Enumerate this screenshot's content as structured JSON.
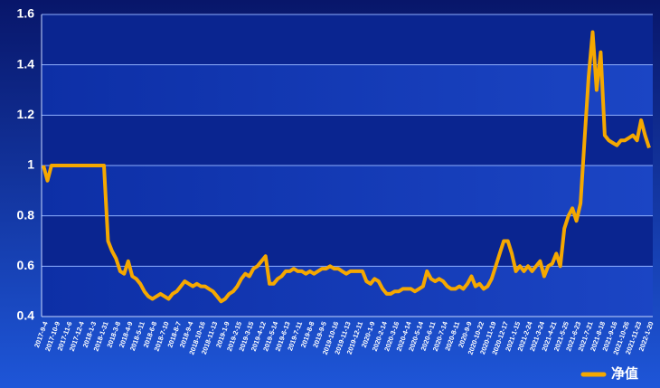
{
  "chart_data": {
    "type": "line",
    "categories": [
      "2017-9-4",
      null,
      null,
      "2017-10-9",
      null,
      null,
      "2017-11-6",
      null,
      null,
      "2017-12-4",
      null,
      null,
      "2018-1-3",
      null,
      null,
      "2018-1-31",
      null,
      null,
      "2018-3-8",
      null,
      null,
      "2018-4-9",
      null,
      null,
      "2018-5-11",
      null,
      null,
      "2018-6-8",
      null,
      null,
      "2018-7-10",
      null,
      null,
      "2018-8-7",
      null,
      null,
      "2018-9-4",
      null,
      null,
      "2018-10-16",
      null,
      null,
      "2018-11-13",
      null,
      null,
      "2019-1-9",
      null,
      null,
      "2019-2-15",
      null,
      null,
      "2019-3-15",
      null,
      null,
      "2019-4-12",
      null,
      null,
      "2019-5-14",
      null,
      null,
      "2019-6-13",
      null,
      null,
      "2019-7-11",
      null,
      null,
      "2019-8-8",
      null,
      null,
      "2019-9-5",
      null,
      null,
      "2019-10-16",
      null,
      null,
      "2019-11-13",
      null,
      null,
      "2019-12-11",
      null,
      null,
      "2020-1-9",
      null,
      null,
      "2020-2-14",
      null,
      null,
      "2020-3-16",
      null,
      null,
      "2020-4-14",
      null,
      null,
      "2020-5-14",
      null,
      null,
      "2020-6-11",
      null,
      null,
      "2020-7-14",
      null,
      null,
      "2020-8-11",
      null,
      null,
      "2020-9-9",
      null,
      null,
      "2020-10-22",
      null,
      null,
      "2020-11-19",
      null,
      null,
      "2020-12-17",
      null,
      null,
      "2021-1-15",
      null,
      null,
      "2021-2-24",
      null,
      null,
      "2021-3-24",
      null,
      null,
      "2021-4-21",
      null,
      null,
      "2021-5-25",
      null,
      null,
      "2021-6-23",
      null,
      null,
      "2021-7-21",
      null,
      null,
      "2021-8-18",
      null,
      null,
      "2021-9-16",
      null,
      null,
      "2021-10-26",
      null,
      null,
      "2021-11-23",
      null,
      null,
      "2022-1-20"
    ],
    "series": [
      {
        "name": "净值",
        "color": "#f5a800",
        "values": [
          1.0,
          0.94,
          1.0,
          1.0,
          1.0,
          1.0,
          1.0,
          1.0,
          1.0,
          1.0,
          1.0,
          1.0,
          1.0,
          1.0,
          1.0,
          1.0,
          0.7,
          0.66,
          0.63,
          0.58,
          0.57,
          0.62,
          0.56,
          0.55,
          0.53,
          0.5,
          0.48,
          0.47,
          0.48,
          0.49,
          0.48,
          0.47,
          0.49,
          0.5,
          0.52,
          0.54,
          0.53,
          0.52,
          0.53,
          0.52,
          0.52,
          0.51,
          0.5,
          0.48,
          0.46,
          0.47,
          0.49,
          0.5,
          0.52,
          0.55,
          0.57,
          0.56,
          0.59,
          0.6,
          0.62,
          0.64,
          0.53,
          0.53,
          0.55,
          0.56,
          0.58,
          0.58,
          0.59,
          0.58,
          0.58,
          0.57,
          0.58,
          0.57,
          0.58,
          0.59,
          0.59,
          0.6,
          0.59,
          0.59,
          0.58,
          0.57,
          0.58,
          0.58,
          0.58,
          0.58,
          0.54,
          0.53,
          0.55,
          0.54,
          0.51,
          0.49,
          0.49,
          0.5,
          0.5,
          0.51,
          0.51,
          0.51,
          0.5,
          0.51,
          0.52,
          0.58,
          0.55,
          0.54,
          0.55,
          0.54,
          0.52,
          0.51,
          0.51,
          0.52,
          0.51,
          0.53,
          0.56,
          0.52,
          0.53,
          0.51,
          0.52,
          0.55,
          0.6,
          0.65,
          0.7,
          0.7,
          0.65,
          0.58,
          0.6,
          0.58,
          0.6,
          0.58,
          0.6,
          0.62,
          0.56,
          0.6,
          0.61,
          0.65,
          0.6,
          0.75,
          0.8,
          0.83,
          0.78,
          0.85,
          1.1,
          1.35,
          1.53,
          1.3,
          1.45,
          1.12,
          1.1,
          1.09,
          1.08,
          1.1,
          1.1,
          1.11,
          1.12,
          1.1,
          1.18,
          1.12,
          1.07
        ]
      }
    ],
    "ylim": [
      0.4,
      1.6
    ],
    "yticks": [
      0.4,
      0.6,
      0.8,
      1,
      1.2,
      1.4,
      1.6
    ],
    "grid": true,
    "legend": "bottom-right"
  }
}
